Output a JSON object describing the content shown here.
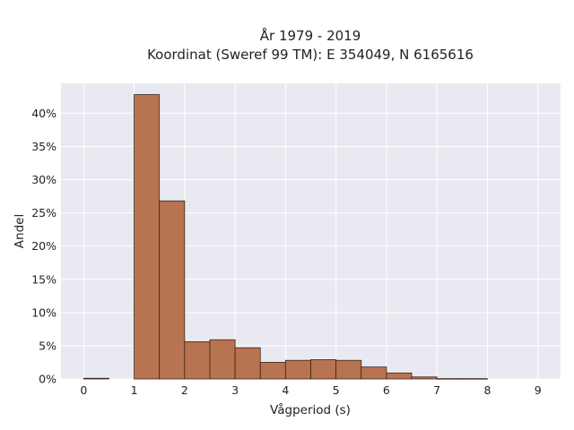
{
  "chart_data": {
    "type": "bar",
    "title_line1": "År 1979 - 2019",
    "title_line2": "Koordinat (Sweref 99 TM): E 354049, N 6165616",
    "xlabel": "Vågperiod (s)",
    "ylabel": "Andel",
    "x_ticks": [
      "0",
      "1",
      "2",
      "3",
      "4",
      "5",
      "6",
      "7",
      "8",
      "9"
    ],
    "x_tick_values": [
      0,
      1,
      2,
      3,
      4,
      5,
      6,
      7,
      8,
      9
    ],
    "y_ticks": [
      "0%",
      "5%",
      "10%",
      "15%",
      "20%",
      "25%",
      "30%",
      "35%",
      "40%"
    ],
    "y_tick_values": [
      0,
      5,
      10,
      15,
      20,
      25,
      30,
      35,
      40
    ],
    "xlim": [
      -0.45,
      9.45
    ],
    "ylim": [
      0,
      44.5
    ],
    "bin_width": 0.5,
    "bins": [
      {
        "start": 0.0,
        "value": 0.1
      },
      {
        "start": 1.0,
        "value": 42.8
      },
      {
        "start": 1.5,
        "value": 26.8
      },
      {
        "start": 2.0,
        "value": 5.6
      },
      {
        "start": 2.5,
        "value": 5.9
      },
      {
        "start": 3.0,
        "value": 4.7
      },
      {
        "start": 3.5,
        "value": 2.5
      },
      {
        "start": 4.0,
        "value": 2.8
      },
      {
        "start": 4.5,
        "value": 2.9
      },
      {
        "start": 5.0,
        "value": 2.8
      },
      {
        "start": 5.5,
        "value": 1.8
      },
      {
        "start": 6.0,
        "value": 0.9
      },
      {
        "start": 6.5,
        "value": 0.3
      },
      {
        "start": 7.0,
        "value": 0.05
      },
      {
        "start": 7.5,
        "value": 0.05
      }
    ],
    "grid": true,
    "colors": {
      "bar_fill": "#b87350",
      "bar_edge": "#3d2518",
      "plot_bg": "#e9e9f1",
      "grid": "#ffffff"
    }
  }
}
